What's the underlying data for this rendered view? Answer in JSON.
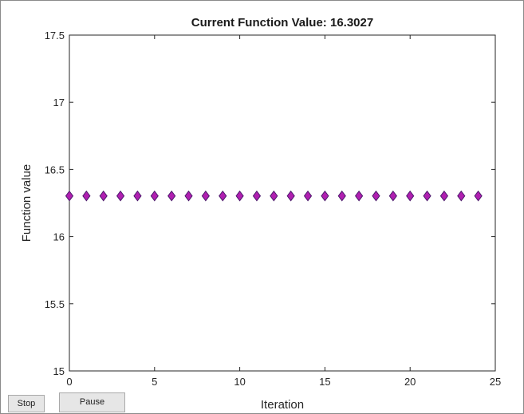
{
  "window": {
    "title": "Current Function Value: 16.3027"
  },
  "buttons": {
    "stop_label": "Stop",
    "pause_label": "Pause"
  },
  "chart_data": {
    "type": "scatter",
    "title": "Current Function Value: 16.3027",
    "xlabel": "Iteration",
    "ylabel": "Function value",
    "xlim": [
      0,
      25
    ],
    "ylim": [
      15,
      17.5
    ],
    "xticks": [
      0,
      5,
      10,
      15,
      20,
      25
    ],
    "yticks": [
      15,
      15.5,
      16,
      16.5,
      17,
      17.5
    ],
    "grid": false,
    "marker": "diamond",
    "marker_color": "#b01fb0",
    "marker_edge_color": "#4a1a6a",
    "series": [
      {
        "x": [
          0,
          1,
          2,
          3,
          4,
          5,
          6,
          7,
          8,
          9,
          10,
          11,
          12,
          13,
          14,
          15,
          16,
          17,
          18,
          19,
          20,
          21,
          22,
          23,
          24
        ],
        "y": [
          16.3027,
          16.3027,
          16.3027,
          16.3027,
          16.3027,
          16.3027,
          16.3027,
          16.3027,
          16.3027,
          16.3027,
          16.3027,
          16.3027,
          16.3027,
          16.3027,
          16.3027,
          16.3027,
          16.3027,
          16.3027,
          16.3027,
          16.3027,
          16.3027,
          16.3027,
          16.3027,
          16.3027,
          16.3027
        ]
      }
    ]
  }
}
